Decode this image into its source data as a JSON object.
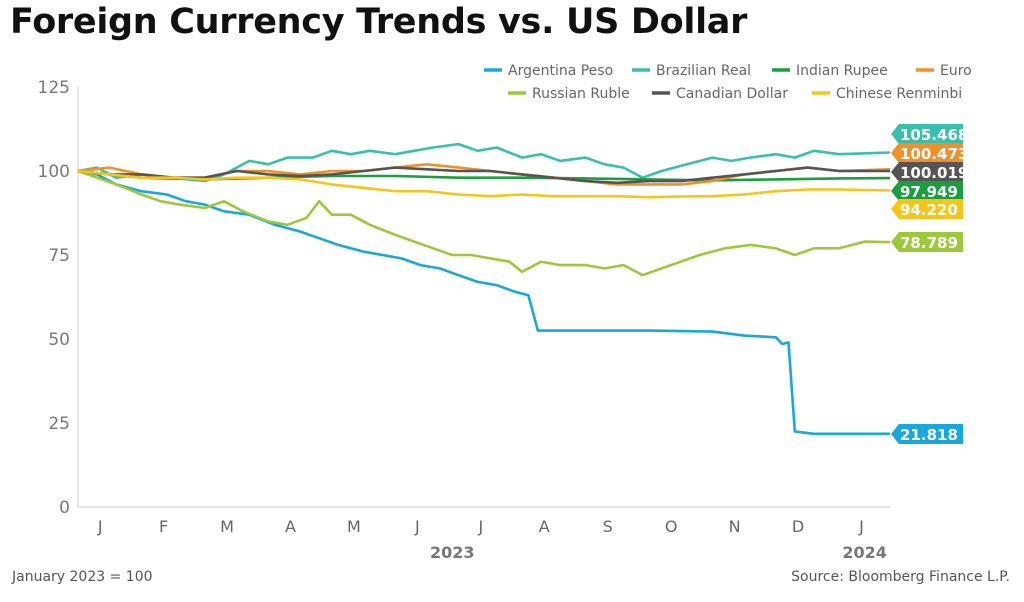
{
  "title": "Foreign Currency Trends vs. US Dollar",
  "footnote": "January 2023 = 100",
  "source": "Source: Bloomberg Finance L.P.",
  "colors": {
    "argentina": "#1aa7dc",
    "brazil": "#3bbfad",
    "india": "#1a9e3f",
    "euro": "#f0902a",
    "russia": "#9cc93b",
    "canada": "#555555",
    "china": "#f5c518"
  },
  "chart_data": {
    "type": "line",
    "title": "Foreign Currency Trends vs. US Dollar",
    "xlabel": "",
    "ylabel": "",
    "ylim": [
      0,
      125
    ],
    "yticks": [
      0,
      25,
      50,
      75,
      100,
      125
    ],
    "x_range": [
      0,
      12.8
    ],
    "month_ticks": [
      "J",
      "F",
      "M",
      "A",
      "M",
      "J",
      "J",
      "A",
      "S",
      "O",
      "N",
      "D",
      "J"
    ],
    "year_labels": [
      {
        "label": "2023",
        "x": 5.9
      },
      {
        "label": "2024",
        "x": 12.4
      }
    ],
    "legend_position": "top-right",
    "series": [
      {
        "key": "argentina",
        "name": "Argentina Peso",
        "end_label": "21.818",
        "points": [
          [
            0,
            100
          ],
          [
            0.3,
            99
          ],
          [
            0.6,
            96
          ],
          [
            1.0,
            94
          ],
          [
            1.4,
            93
          ],
          [
            1.7,
            91
          ],
          [
            2.0,
            90
          ],
          [
            2.3,
            88
          ],
          [
            2.7,
            87
          ],
          [
            3.1,
            84
          ],
          [
            3.5,
            82
          ],
          [
            3.8,
            80
          ],
          [
            4.1,
            78
          ],
          [
            4.5,
            76
          ],
          [
            4.8,
            75
          ],
          [
            5.1,
            74
          ],
          [
            5.4,
            72
          ],
          [
            5.7,
            71
          ],
          [
            6.0,
            69
          ],
          [
            6.3,
            67
          ],
          [
            6.6,
            66
          ],
          [
            6.9,
            64
          ],
          [
            7.1,
            63
          ],
          [
            7.25,
            52.5
          ],
          [
            8.0,
            52.5
          ],
          [
            9.0,
            52.5
          ],
          [
            10.0,
            52.2
          ],
          [
            10.5,
            51
          ],
          [
            11.0,
            50.5
          ],
          [
            11.1,
            48.5
          ],
          [
            11.2,
            49
          ],
          [
            11.3,
            22.5
          ],
          [
            11.6,
            21.8
          ],
          [
            12.0,
            21.8
          ],
          [
            12.8,
            21.8
          ]
        ]
      },
      {
        "key": "brazil",
        "name": "Brazilian Real",
        "end_label": "105.468",
        "points": [
          [
            0,
            100
          ],
          [
            0.3,
            101
          ],
          [
            0.6,
            98
          ],
          [
            1.0,
            99
          ],
          [
            1.5,
            98
          ],
          [
            2.0,
            97
          ],
          [
            2.3,
            99
          ],
          [
            2.7,
            103
          ],
          [
            3.0,
            102
          ],
          [
            3.3,
            104
          ],
          [
            3.7,
            104
          ],
          [
            4.0,
            106
          ],
          [
            4.3,
            105
          ],
          [
            4.6,
            106
          ],
          [
            5.0,
            105
          ],
          [
            5.3,
            106
          ],
          [
            5.6,
            107
          ],
          [
            6.0,
            108
          ],
          [
            6.3,
            106
          ],
          [
            6.6,
            107
          ],
          [
            7.0,
            104
          ],
          [
            7.3,
            105
          ],
          [
            7.6,
            103
          ],
          [
            8.0,
            104
          ],
          [
            8.3,
            102
          ],
          [
            8.6,
            101
          ],
          [
            8.9,
            98
          ],
          [
            9.2,
            100
          ],
          [
            9.6,
            102
          ],
          [
            10.0,
            104
          ],
          [
            10.3,
            103
          ],
          [
            10.6,
            104
          ],
          [
            11.0,
            105
          ],
          [
            11.3,
            104
          ],
          [
            11.6,
            106
          ],
          [
            12.0,
            105
          ],
          [
            12.8,
            105.5
          ]
        ]
      },
      {
        "key": "india",
        "name": "Indian Rupee",
        "end_label": "97.949",
        "points": [
          [
            0,
            100
          ],
          [
            0.5,
            99
          ],
          [
            1.0,
            98
          ],
          [
            2.0,
            97.5
          ],
          [
            3.0,
            98
          ],
          [
            4.0,
            98.5
          ],
          [
            5.0,
            98.5
          ],
          [
            6.0,
            98
          ],
          [
            7.0,
            98
          ],
          [
            8.0,
            97.8
          ],
          [
            9.0,
            97.5
          ],
          [
            10.0,
            97.2
          ],
          [
            11.0,
            97.5
          ],
          [
            12.0,
            97.8
          ],
          [
            12.8,
            97.9
          ]
        ]
      },
      {
        "key": "euro",
        "name": "Euro",
        "end_label": "100.473",
        "points": [
          [
            0,
            100
          ],
          [
            0.5,
            101
          ],
          [
            1.0,
            99
          ],
          [
            1.5,
            98
          ],
          [
            2.0,
            98
          ],
          [
            2.5,
            100
          ],
          [
            3.0,
            100
          ],
          [
            3.5,
            99
          ],
          [
            4.0,
            100
          ],
          [
            4.5,
            100
          ],
          [
            5.0,
            101
          ],
          [
            5.5,
            102
          ],
          [
            6.0,
            101
          ],
          [
            6.5,
            100
          ],
          [
            7.0,
            99
          ],
          [
            7.5,
            98
          ],
          [
            8.0,
            97
          ],
          [
            8.5,
            96
          ],
          [
            9.0,
            96
          ],
          [
            9.5,
            96
          ],
          [
            10.0,
            97
          ],
          [
            10.5,
            99
          ],
          [
            11.0,
            100
          ],
          [
            11.5,
            101
          ],
          [
            12.0,
            100
          ],
          [
            12.8,
            100.5
          ]
        ]
      },
      {
        "key": "russia",
        "name": "Russian Ruble",
        "end_label": "78.789",
        "points": [
          [
            0,
            100
          ],
          [
            0.3,
            98
          ],
          [
            0.6,
            96
          ],
          [
            1.0,
            93
          ],
          [
            1.3,
            91
          ],
          [
            1.6,
            90
          ],
          [
            2.0,
            89
          ],
          [
            2.3,
            91
          ],
          [
            2.6,
            88
          ],
          [
            3.0,
            85
          ],
          [
            3.3,
            84
          ],
          [
            3.6,
            86
          ],
          [
            3.8,
            91
          ],
          [
            4.0,
            87
          ],
          [
            4.3,
            87
          ],
          [
            4.6,
            84
          ],
          [
            5.0,
            81
          ],
          [
            5.3,
            79
          ],
          [
            5.6,
            77
          ],
          [
            5.9,
            75
          ],
          [
            6.2,
            75
          ],
          [
            6.5,
            74
          ],
          [
            6.8,
            73
          ],
          [
            7.0,
            70
          ],
          [
            7.3,
            73
          ],
          [
            7.6,
            72
          ],
          [
            8.0,
            72
          ],
          [
            8.3,
            71
          ],
          [
            8.6,
            72
          ],
          [
            8.9,
            69
          ],
          [
            9.2,
            71
          ],
          [
            9.5,
            73
          ],
          [
            9.8,
            75
          ],
          [
            10.2,
            77
          ],
          [
            10.6,
            78
          ],
          [
            11.0,
            77
          ],
          [
            11.3,
            75
          ],
          [
            11.6,
            77
          ],
          [
            12.0,
            77
          ],
          [
            12.4,
            79
          ],
          [
            12.8,
            78.8
          ]
        ]
      },
      {
        "key": "canada",
        "name": "Canadian Dollar",
        "end_label": "100.019",
        "points": [
          [
            0,
            100
          ],
          [
            0.5,
            99
          ],
          [
            1.0,
            99
          ],
          [
            1.5,
            98
          ],
          [
            2.0,
            98
          ],
          [
            2.5,
            100
          ],
          [
            3.0,
            99
          ],
          [
            3.5,
            98.5
          ],
          [
            4.0,
            99
          ],
          [
            4.5,
            100
          ],
          [
            5.0,
            101
          ],
          [
            5.5,
            100.5
          ],
          [
            6.0,
            100
          ],
          [
            6.5,
            100
          ],
          [
            7.0,
            99
          ],
          [
            7.5,
            98
          ],
          [
            8.0,
            97
          ],
          [
            8.5,
            96.5
          ],
          [
            9.0,
            97
          ],
          [
            9.5,
            97
          ],
          [
            10.0,
            98
          ],
          [
            10.5,
            99
          ],
          [
            11.0,
            100
          ],
          [
            11.5,
            101
          ],
          [
            12.0,
            100
          ],
          [
            12.8,
            100
          ]
        ]
      },
      {
        "key": "china",
        "name": "Chinese Renminbi",
        "end_label": "94.220",
        "points": [
          [
            0,
            100
          ],
          [
            0.5,
            99
          ],
          [
            1.0,
            98
          ],
          [
            1.5,
            98
          ],
          [
            2.0,
            97.5
          ],
          [
            2.5,
            98
          ],
          [
            3.0,
            98
          ],
          [
            3.5,
            97.5
          ],
          [
            4.0,
            96
          ],
          [
            4.5,
            95
          ],
          [
            5.0,
            94
          ],
          [
            5.5,
            94
          ],
          [
            6.0,
            93
          ],
          [
            6.5,
            92.5
          ],
          [
            7.0,
            93
          ],
          [
            7.5,
            92.5
          ],
          [
            8.0,
            92.5
          ],
          [
            8.5,
            92.5
          ],
          [
            9.0,
            92.2
          ],
          [
            9.5,
            92.4
          ],
          [
            10.0,
            92.5
          ],
          [
            10.5,
            93
          ],
          [
            11.0,
            94
          ],
          [
            11.5,
            94.5
          ],
          [
            12.0,
            94.5
          ],
          [
            12.8,
            94.2
          ]
        ]
      }
    ],
    "end_label_order": [
      "brazil",
      "euro",
      "canada",
      "india",
      "china",
      "russia",
      "argentina"
    ]
  }
}
